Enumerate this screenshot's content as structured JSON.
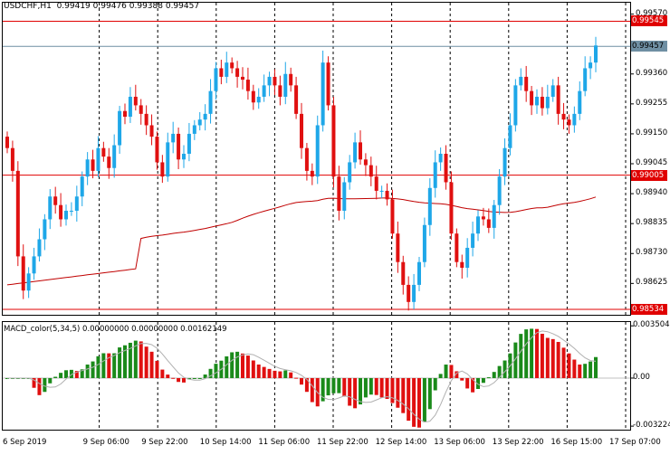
{
  "header": {
    "symbol_tf": "USDCHF,H1",
    "open": "0.99419",
    "high": "0.99476",
    "low": "0.99388",
    "close": "0.99457"
  },
  "price_axis": {
    "ticks": [
      "0.99570",
      "0.99360",
      "0.99255",
      "0.99150",
      "0.99045",
      "0.98940",
      "0.98835",
      "0.98730",
      "0.98625"
    ],
    "tick_values": [
      0.9957,
      0.9936,
      0.99255,
      0.9915,
      0.99045,
      0.9894,
      0.98835,
      0.9873,
      0.98625
    ],
    "min": 0.98515,
    "max": 0.9961
  },
  "price_lines": [
    {
      "label": "0.99545",
      "value": 0.99545,
      "color": "#e00000",
      "text_color": "#ffffff"
    },
    {
      "label": "0.99457",
      "value": 0.99457,
      "color": "#6f8fa3",
      "text_color": "#000000"
    },
    {
      "label": "0.99005",
      "value": 0.99005,
      "color": "#e00000",
      "text_color": "#ffffff"
    },
    {
      "label": "0.98534",
      "value": 0.98534,
      "color": "#e00000",
      "text_color": "#ffffff"
    }
  ],
  "macd": {
    "title": "MACD_color(5,34,5) 0.00000000 0.00000000 0.00162149",
    "ticks": [
      "0.0035048",
      "0.00",
      "-0.0032249"
    ],
    "tick_values": [
      0.0035048,
      0.0,
      -0.0032249
    ],
    "min": -0.0034,
    "max": 0.0037
  },
  "time_labels": [
    "6 Sep 2019",
    "9 Sep 06:00",
    "9 Sep 22:00",
    "10 Sep 14:00",
    "11 Sep 06:00",
    "11 Sep 22:00",
    "12 Sep 14:00",
    "13 Sep 06:00",
    "13 Sep 22:00",
    "16 Sep 15:00",
    "17 Sep 07:00"
  ],
  "colors": {
    "bull": "#1ea7e8",
    "bear": "#e01010",
    "ma": "#c00000",
    "grid": "#000000",
    "macd_pos": "#1a8a1a",
    "macd_neg": "#e01010",
    "signal": "#b0b0b0"
  },
  "chart_data": {
    "type": "candlestick",
    "closes": [
      0.991,
      0.9902,
      0.9872,
      0.986,
      0.9866,
      0.9872,
      0.9878,
      0.9885,
      0.9893,
      0.989,
      0.9885,
      0.9888,
      0.9888,
      0.9893,
      0.99,
      0.9906,
      0.9902,
      0.991,
      0.9907,
      0.9903,
      0.9911,
      0.9923,
      0.9921,
      0.9928,
      0.9925,
      0.9922,
      0.9918,
      0.9914,
      0.9905,
      0.99,
      0.9912,
      0.9915,
      0.9906,
      0.9908,
      0.9915,
      0.9918,
      0.992,
      0.9922,
      0.993,
      0.9938,
      0.9935,
      0.994,
      0.9938,
      0.9935,
      0.9934,
      0.993,
      0.9926,
      0.9928,
      0.9932,
      0.9935,
      0.9932,
      0.9928,
      0.9936,
      0.9932,
      0.9922,
      0.991,
      0.9902,
      0.99,
      0.9918,
      0.994,
      0.9925,
      0.99,
      0.9888,
      0.9898,
      0.9905,
      0.9912,
      0.9906,
      0.9904,
      0.99,
      0.9895,
      0.9895,
      0.9892,
      0.988,
      0.987,
      0.9862,
      0.9856,
      0.9862,
      0.987,
      0.9883,
      0.9896,
      0.9905,
      0.9908,
      0.9898,
      0.988,
      0.987,
      0.9868,
      0.9875,
      0.988,
      0.9886,
      0.9885,
      0.9882,
      0.989,
      0.99,
      0.991,
      0.9918,
      0.9932,
      0.9935,
      0.993,
      0.9925,
      0.9928,
      0.9924,
      0.9928,
      0.9932,
      0.9922,
      0.992,
      0.9918,
      0.9922,
      0.993,
      0.9938,
      0.994,
      0.9946
    ]
  }
}
